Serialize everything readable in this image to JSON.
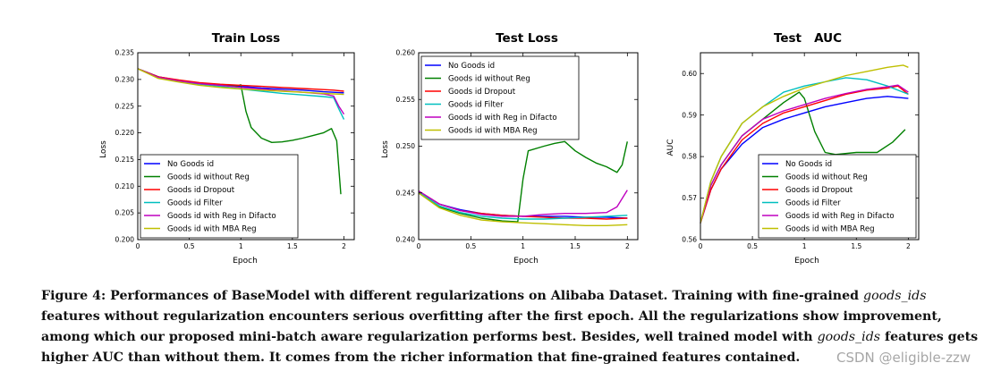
{
  "chart_data": [
    {
      "type": "line",
      "title": "Train Loss",
      "xlabel": "Epoch",
      "ylabel": "Loss",
      "xlim": [
        0,
        2.1
      ],
      "ylim": [
        0.2,
        0.235
      ],
      "xticks": [
        0,
        0.5,
        1,
        1.5,
        2
      ],
      "xtick_labels": [
        "0",
        "0.5",
        "1",
        "1.5",
        "2"
      ],
      "yticks": [
        0.2,
        0.205,
        0.21,
        0.215,
        0.22,
        0.225,
        0.23,
        0.235
      ],
      "ytick_labels": [
        "0.200",
        "0.205",
        "0.210",
        "0.215",
        "0.220",
        "0.225",
        "0.230",
        "0.235"
      ],
      "legend_position": "lower-left",
      "series": [
        {
          "name": "No Goods id",
          "color": "#0000ff",
          "x": [
            0,
            0.2,
            0.4,
            0.6,
            0.8,
            1.0,
            1.2,
            1.4,
            1.6,
            1.8,
            1.9,
            2.0
          ],
          "y": [
            0.232,
            0.2305,
            0.2298,
            0.2293,
            0.229,
            0.2287,
            0.2284,
            0.2282,
            0.228,
            0.2277,
            0.2276,
            0.2275
          ]
        },
        {
          "name": "Goods id without Reg",
          "color": "#008000",
          "x": [
            0,
            0.2,
            0.4,
            0.6,
            0.8,
            0.95,
            1.0,
            1.05,
            1.1,
            1.2,
            1.3,
            1.4,
            1.5,
            1.6,
            1.7,
            1.8,
            1.88,
            1.93,
            1.97
          ],
          "y": [
            0.232,
            0.2305,
            0.2298,
            0.2292,
            0.2289,
            0.2287,
            0.229,
            0.224,
            0.221,
            0.219,
            0.2182,
            0.2183,
            0.2186,
            0.219,
            0.2195,
            0.22,
            0.2208,
            0.2185,
            0.2085
          ]
        },
        {
          "name": "Goods id Dropout",
          "color": "#ff0000",
          "x": [
            0,
            0.2,
            0.4,
            0.6,
            0.8,
            1.0,
            1.2,
            1.4,
            1.6,
            1.8,
            1.9,
            2.0
          ],
          "y": [
            0.232,
            0.2305,
            0.2299,
            0.2294,
            0.2291,
            0.2289,
            0.2287,
            0.2285,
            0.2283,
            0.2281,
            0.228,
            0.2278
          ]
        },
        {
          "name": "Goods id Filter",
          "color": "#00bfbf",
          "x": [
            0,
            0.2,
            0.4,
            0.6,
            0.8,
            1.0,
            1.2,
            1.4,
            1.6,
            1.8,
            1.9,
            1.95,
            2.0
          ],
          "y": [
            0.232,
            0.2303,
            0.2296,
            0.2291,
            0.2287,
            0.2282,
            0.2278,
            0.2274,
            0.2271,
            0.2268,
            0.2266,
            0.2245,
            0.2225
          ]
        },
        {
          "name": "Goods id with Reg in Difacto",
          "color": "#bf00bf",
          "x": [
            0,
            0.2,
            0.4,
            0.6,
            0.8,
            1.0,
            1.2,
            1.4,
            1.6,
            1.8,
            1.9,
            1.95,
            2.0
          ],
          "y": [
            0.232,
            0.2304,
            0.2297,
            0.2292,
            0.2289,
            0.2285,
            0.2282,
            0.2279,
            0.2276,
            0.2273,
            0.2269,
            0.225,
            0.2235
          ]
        },
        {
          "name": "Goods id with MBA Reg",
          "color": "#bfbf00",
          "x": [
            0,
            0.2,
            0.4,
            0.6,
            0.8,
            1.0,
            1.2,
            1.4,
            1.6,
            1.8,
            1.9,
            2.0
          ],
          "y": [
            0.232,
            0.2302,
            0.2295,
            0.2289,
            0.2285,
            0.2282,
            0.228,
            0.2278,
            0.2276,
            0.2274,
            0.2273,
            0.2272
          ]
        }
      ]
    },
    {
      "type": "line",
      "title": "Test Loss",
      "xlabel": "Epoch",
      "ylabel": "Loss",
      "xlim": [
        0,
        2.1
      ],
      "ylim": [
        0.24,
        0.26
      ],
      "xticks": [
        0,
        0.5,
        1,
        1.5,
        2
      ],
      "xtick_labels": [
        "0",
        "0.5",
        "1",
        "1.5",
        "2"
      ],
      "yticks": [
        0.24,
        0.245,
        0.25,
        0.255,
        0.26
      ],
      "ytick_labels": [
        "0.240",
        "0.245",
        "0.250",
        "0.255",
        "0.260"
      ],
      "legend_position": "upper-left",
      "series": [
        {
          "name": "No Goods id",
          "color": "#0000ff",
          "x": [
            0,
            0.2,
            0.4,
            0.6,
            0.8,
            1.0,
            1.2,
            1.4,
            1.6,
            1.8,
            2.0
          ],
          "y": [
            0.2452,
            0.2438,
            0.2432,
            0.2428,
            0.2426,
            0.2425,
            0.2425,
            0.2425,
            0.2424,
            0.2424,
            0.2423
          ]
        },
        {
          "name": "Goods id without Reg",
          "color": "#008000",
          "x": [
            0,
            0.2,
            0.4,
            0.6,
            0.8,
            0.95,
            1.0,
            1.05,
            1.2,
            1.3,
            1.4,
            1.5,
            1.6,
            1.7,
            1.8,
            1.9,
            1.95,
            2.0
          ],
          "y": [
            0.245,
            0.2435,
            0.2428,
            0.2423,
            0.242,
            0.2419,
            0.2465,
            0.2495,
            0.25,
            0.2503,
            0.2505,
            0.2495,
            0.2488,
            0.2482,
            0.2478,
            0.2472,
            0.248,
            0.2505
          ]
        },
        {
          "name": "Goods id Dropout",
          "color": "#ff0000",
          "x": [
            0,
            0.2,
            0.4,
            0.6,
            0.8,
            1.0,
            1.2,
            1.4,
            1.6,
            1.8,
            2.0
          ],
          "y": [
            0.2452,
            0.2438,
            0.2431,
            0.2428,
            0.2426,
            0.2425,
            0.2424,
            0.2423,
            0.2423,
            0.2422,
            0.2423
          ]
        },
        {
          "name": "Goods id Filter",
          "color": "#00bfbf",
          "x": [
            0,
            0.2,
            0.4,
            0.6,
            0.8,
            1.0,
            1.2,
            1.4,
            1.6,
            1.8,
            2.0
          ],
          "y": [
            0.2451,
            0.2436,
            0.2429,
            0.2425,
            0.2423,
            0.2422,
            0.2422,
            0.2423,
            0.2424,
            0.2425,
            0.2426
          ]
        },
        {
          "name": "Goods id with Reg in Difacto",
          "color": "#bf00bf",
          "x": [
            0,
            0.2,
            0.4,
            0.6,
            0.8,
            1.0,
            1.2,
            1.4,
            1.6,
            1.8,
            1.9,
            2.0
          ],
          "y": [
            0.2452,
            0.2438,
            0.2431,
            0.2427,
            0.2425,
            0.2425,
            0.2427,
            0.2428,
            0.2428,
            0.2429,
            0.2435,
            0.2453
          ]
        },
        {
          "name": "Goods id with MBA Reg",
          "color": "#bfbf00",
          "x": [
            0,
            0.2,
            0.4,
            0.6,
            0.8,
            1.0,
            1.2,
            1.4,
            1.6,
            1.8,
            2.0
          ],
          "y": [
            0.245,
            0.2434,
            0.2426,
            0.2421,
            0.2419,
            0.2418,
            0.2417,
            0.2416,
            0.2415,
            0.2415,
            0.2416
          ]
        }
      ]
    },
    {
      "type": "line",
      "title": "Test   AUC",
      "xlabel": "Epoch",
      "ylabel": "AUC",
      "xlim": [
        0,
        2.1
      ],
      "ylim": [
        0.56,
        0.605
      ],
      "xticks": [
        0,
        0.5,
        1,
        1.5,
        2
      ],
      "xtick_labels": [
        "0",
        "0.5",
        "1",
        "1.5",
        "2"
      ],
      "yticks": [
        0.56,
        0.57,
        0.58,
        0.59,
        0.6
      ],
      "ytick_labels": [
        "0.56",
        "0.57",
        "0.58",
        "0.59",
        "0.60"
      ],
      "legend_position": "lower-right",
      "series": [
        {
          "name": "No Goods id",
          "color": "#0000ff",
          "x": [
            0,
            0.1,
            0.2,
            0.4,
            0.6,
            0.8,
            1.0,
            1.2,
            1.4,
            1.6,
            1.8,
            2.0
          ],
          "y": [
            0.564,
            0.572,
            0.577,
            0.583,
            0.587,
            0.589,
            0.5905,
            0.592,
            0.593,
            0.594,
            0.5945,
            0.594
          ]
        },
        {
          "name": "Goods id without Reg",
          "color": "#008000",
          "x": [
            0,
            0.1,
            0.2,
            0.4,
            0.6,
            0.8,
            0.95,
            1.0,
            1.1,
            1.2,
            1.3,
            1.5,
            1.7,
            1.85,
            1.97
          ],
          "y": [
            0.564,
            0.573,
            0.578,
            0.585,
            0.589,
            0.593,
            0.5955,
            0.594,
            0.586,
            0.581,
            0.5805,
            0.581,
            0.581,
            0.5835,
            0.5865
          ]
        },
        {
          "name": "Goods id Dropout",
          "color": "#ff0000",
          "x": [
            0,
            0.1,
            0.2,
            0.4,
            0.6,
            0.8,
            1.0,
            1.2,
            1.4,
            1.6,
            1.8,
            1.9,
            2.0
          ],
          "y": [
            0.564,
            0.572,
            0.577,
            0.584,
            0.588,
            0.5905,
            0.592,
            0.5935,
            0.595,
            0.596,
            0.5965,
            0.597,
            0.595
          ]
        },
        {
          "name": "Goods id Filter",
          "color": "#00bfbf",
          "x": [
            0,
            0.1,
            0.2,
            0.4,
            0.6,
            0.8,
            1.0,
            1.2,
            1.4,
            1.6,
            1.8,
            2.0
          ],
          "y": [
            0.564,
            0.574,
            0.58,
            0.588,
            0.592,
            0.5955,
            0.597,
            0.598,
            0.599,
            0.5985,
            0.597,
            0.595
          ]
        },
        {
          "name": "Goods id with Reg in Difacto",
          "color": "#bf00bf",
          "x": [
            0,
            0.1,
            0.2,
            0.4,
            0.6,
            0.8,
            1.0,
            1.2,
            1.4,
            1.6,
            1.8,
            1.9,
            2.0
          ],
          "y": [
            0.564,
            0.573,
            0.578,
            0.585,
            0.589,
            0.591,
            0.5925,
            0.594,
            0.5952,
            0.5962,
            0.5968,
            0.5972,
            0.5955
          ]
        },
        {
          "name": "Goods id with MBA Reg",
          "color": "#bfbf00",
          "x": [
            0,
            0.1,
            0.2,
            0.4,
            0.6,
            0.8,
            1.0,
            1.2,
            1.4,
            1.6,
            1.8,
            1.95,
            2.0
          ],
          "y": [
            0.564,
            0.574,
            0.58,
            0.588,
            0.592,
            0.5945,
            0.5965,
            0.598,
            0.5995,
            0.6005,
            0.6015,
            0.602,
            0.6015
          ]
        }
      ]
    }
  ],
  "caption": {
    "prefix": "Figure 4: Performances of BaseModel with different regularizations on Alibaba Dataset. Training with fine-grained ",
    "em1": "goods_ids",
    "mid": " features without regularization encounters serious overfitting after the first epoch. All the regularizations show improvement, among which our proposed mini-batch aware regularization performs best. Besides, well trained model with ",
    "em2": "goods_ids",
    "suffix": " features gets higher AUC than without them. It comes from the richer information that fine-grained features contained."
  },
  "watermark": "CSDN @eligible-zzw"
}
